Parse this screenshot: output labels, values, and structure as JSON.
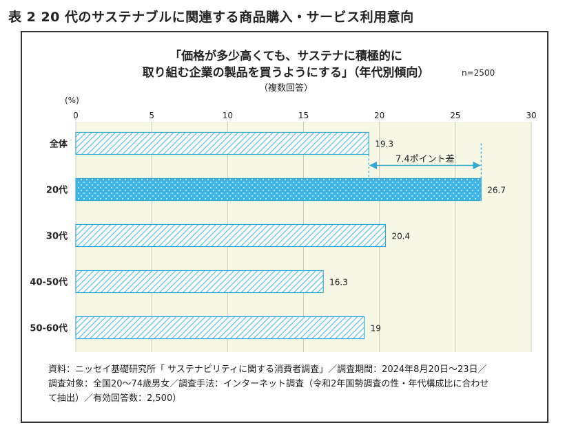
{
  "figure_label": "表 2 20 代のサステナブルに関連する商品購入・サービス利用意向",
  "chart_data": {
    "type": "bar",
    "orientation": "horizontal",
    "title_line1": "「価格が多少高くても、サステナに積極的に",
    "title_line2": "取り組む企業の製品を買うようにする」（年代別傾向）",
    "n_label": "n=2500",
    "subtitle": "（複数回答）",
    "unit_label": "(%)",
    "categories": [
      "全体",
      "20代",
      "30代",
      "40-50代",
      "50-60代"
    ],
    "values": [
      19.3,
      26.7,
      20.4,
      16.3,
      19
    ],
    "value_labels": [
      "19.3",
      "26.7",
      "20.4",
      "16.3",
      "19"
    ],
    "xlim": [
      0,
      30
    ],
    "ticks": [
      "0",
      "5",
      "10",
      "15",
      "20",
      "25",
      "30"
    ],
    "highlight_category": "20代",
    "annotation": "7.4ポイント差",
    "grid": true,
    "colors": {
      "bar_edge": "#35a7d3",
      "bar_hatch": "#5bbde3",
      "highlight_fill": "#3fb4e6",
      "plot_bg": "#f7f7e6",
      "annotation": "#35a7d3"
    }
  },
  "source_lines": [
    "資料：ニッセイ基礎研究所「 サステナビリティに関する消費者調査」／調査期間：2024年8月20日～23日／",
    "調査対象：全国20～74歳男女／調査手法：インターネット調査（令和2年国勢調査の性・年代構成比に合わせ",
    "て抽出）／有効回答数：2,500）"
  ]
}
